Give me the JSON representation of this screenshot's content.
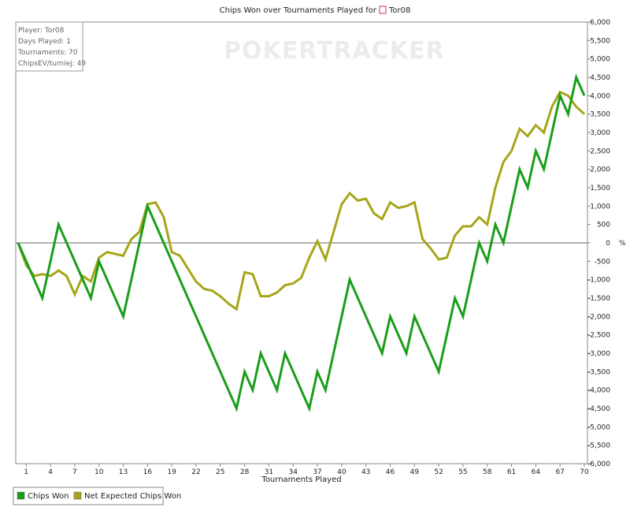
{
  "chart_data": {
    "type": "line",
    "title_prefix": "Chips Won over Tournaments Played for",
    "title_name": "Tor08",
    "xlabel": "Tournaments Played",
    "ylabel": "",
    "y_unit_label": "%",
    "xlim": [
      0,
      70
    ],
    "ylim": [
      -6000,
      6000
    ],
    "x_ticks": [
      1,
      4,
      7,
      10,
      13,
      16,
      19,
      22,
      25,
      28,
      31,
      34,
      37,
      40,
      43,
      46,
      49,
      52,
      55,
      58,
      61,
      64,
      67,
      70
    ],
    "y_ticks": [
      6000,
      5500,
      5000,
      4500,
      4000,
      3500,
      3000,
      2500,
      2000,
      1500,
      1000,
      500,
      0,
      -500,
      -1000,
      -1500,
      -2000,
      -2500,
      -3000,
      -3500,
      -4000,
      -4500,
      -5000,
      -5500,
      -6000
    ],
    "y_tick_labels": [
      "6,000",
      "5,500",
      "5,000",
      "4,500",
      "4,000",
      "3,500",
      "3,000",
      "2,500",
      "2,000",
      "1,500",
      "1,000",
      "500",
      "0",
      "-500",
      "-1,000",
      "-1,500",
      "-2,000",
      "-2,500",
      "-3,000",
      "-3,500",
      "-4,000",
      "-4,500",
      "-5,000",
      "-5,500",
      "-6,000"
    ],
    "grid": true,
    "legend_position": "bottom-left",
    "series": [
      {
        "name": "Chips Won",
        "color": "#1a9e1a",
        "points": [
          [
            0,
            0
          ],
          [
            3,
            -1500
          ],
          [
            5,
            500
          ],
          [
            9,
            -1500
          ],
          [
            10,
            -500
          ],
          [
            13,
            -2000
          ],
          [
            16,
            1000
          ],
          [
            27,
            -4500
          ],
          [
            28,
            -3500
          ],
          [
            29,
            -4000
          ],
          [
            30,
            -3000
          ],
          [
            32,
            -4000
          ],
          [
            33,
            -3000
          ],
          [
            36,
            -4500
          ],
          [
            37,
            -3500
          ],
          [
            38,
            -4000
          ],
          [
            41,
            -1000
          ],
          [
            45,
            -3000
          ],
          [
            46,
            -2000
          ],
          [
            48,
            -3000
          ],
          [
            49,
            -2000
          ],
          [
            52,
            -3500
          ],
          [
            54,
            -1500
          ],
          [
            55,
            -2000
          ],
          [
            57,
            0
          ],
          [
            58,
            -500
          ],
          [
            59,
            500
          ],
          [
            60,
            0
          ],
          [
            62,
            2000
          ],
          [
            63,
            1500
          ],
          [
            64,
            2500
          ],
          [
            65,
            2000
          ],
          [
            67,
            4000
          ],
          [
            68,
            3500
          ],
          [
            69,
            4500
          ],
          [
            70,
            4000
          ]
        ]
      },
      {
        "name": "Net Expected Chips Won",
        "color": "#a6a61a",
        "points": [
          [
            0,
            0
          ],
          [
            1,
            -600
          ],
          [
            2,
            -900
          ],
          [
            3,
            -850
          ],
          [
            4,
            -900
          ],
          [
            5,
            -750
          ],
          [
            6,
            -900
          ],
          [
            7,
            -1400
          ],
          [
            8,
            -900
          ],
          [
            9,
            -1050
          ],
          [
            10,
            -400
          ],
          [
            11,
            -250
          ],
          [
            12,
            -300
          ],
          [
            13,
            -350
          ],
          [
            14,
            100
          ],
          [
            15,
            300
          ],
          [
            16,
            1050
          ],
          [
            17,
            1100
          ],
          [
            18,
            700
          ],
          [
            19,
            -250
          ],
          [
            20,
            -350
          ],
          [
            21,
            -700
          ],
          [
            22,
            -1050
          ],
          [
            23,
            -1250
          ],
          [
            24,
            -1300
          ],
          [
            25,
            -1450
          ],
          [
            26,
            -1650
          ],
          [
            27,
            -1800
          ],
          [
            28,
            -800
          ],
          [
            29,
            -850
          ],
          [
            30,
            -1450
          ],
          [
            31,
            -1450
          ],
          [
            32,
            -1350
          ],
          [
            33,
            -1150
          ],
          [
            34,
            -1100
          ],
          [
            35,
            -950
          ],
          [
            36,
            -400
          ],
          [
            37,
            50
          ],
          [
            38,
            -450
          ],
          [
            39,
            300
          ],
          [
            40,
            1050
          ],
          [
            41,
            1350
          ],
          [
            42,
            1150
          ],
          [
            43,
            1200
          ],
          [
            44,
            800
          ],
          [
            45,
            650
          ],
          [
            46,
            1100
          ],
          [
            47,
            950
          ],
          [
            48,
            1000
          ],
          [
            49,
            1100
          ],
          [
            50,
            100
          ],
          [
            51,
            -150
          ],
          [
            52,
            -450
          ],
          [
            53,
            -400
          ],
          [
            54,
            200
          ],
          [
            55,
            450
          ],
          [
            56,
            450
          ],
          [
            57,
            700
          ],
          [
            58,
            500
          ],
          [
            59,
            1500
          ],
          [
            60,
            2200
          ],
          [
            61,
            2500
          ],
          [
            62,
            3100
          ],
          [
            63,
            2900
          ],
          [
            64,
            3200
          ],
          [
            65,
            3000
          ],
          [
            66,
            3700
          ],
          [
            67,
            4100
          ],
          [
            68,
            4000
          ],
          [
            69,
            3700
          ],
          [
            70,
            3500
          ]
        ]
      }
    ]
  },
  "info_box": {
    "player": "Player: Tor08",
    "days": "Days Played: 1",
    "tournaments": "Tournaments: 70",
    "chips_ev": "ChipsEV/turniej: 49"
  },
  "watermark_text": "POKERTRACKER",
  "legend": {
    "items": [
      "Chips Won",
      "Net Expected Chips Won"
    ]
  }
}
